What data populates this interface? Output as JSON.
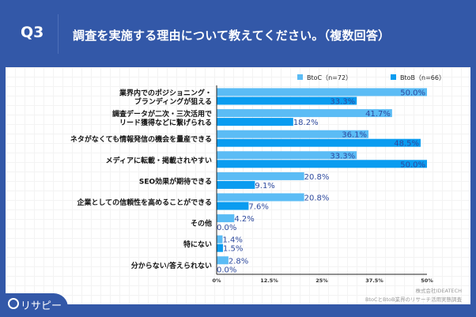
{
  "header": {
    "question": "Q3",
    "title": "調査を実施する理由について教えてください。（複数回答）"
  },
  "logo": "リサピー",
  "footer": {
    "company": "株式会社IDEATECH",
    "survey": "BtoCとBtoB業界のリサーチ活用実態調査"
  },
  "chart_data": {
    "type": "bar",
    "orientation": "horizontal",
    "categories": [
      [
        "業界内でのポジショニング・",
        "ブランディングが狙える"
      ],
      [
        "調査データが二次・三次活用で",
        "リード獲得などに繋げられる"
      ],
      [
        "ネタがなくても情報発信の機会を量産できる"
      ],
      [
        "メディアに転載・掲載されやすい"
      ],
      [
        "SEO効果が期待できる"
      ],
      [
        "企業としての信頼性を高めることができる"
      ],
      [
        "その他"
      ],
      [
        "特にない"
      ],
      [
        "分からない/答えられない"
      ]
    ],
    "series": [
      {
        "name": "BtoC（n=72）",
        "color": "#5bbcf5",
        "values": [
          50.0,
          41.7,
          36.1,
          33.3,
          20.8,
          20.8,
          4.2,
          1.4,
          2.8
        ]
      },
      {
        "name": "BtoB（n=66）",
        "color": "#0a9cf0",
        "values": [
          33.3,
          18.2,
          48.5,
          50.0,
          9.1,
          7.6,
          0.0,
          1.5,
          0.0
        ]
      }
    ],
    "xlim": [
      0,
      50
    ],
    "xticks": [
      "0%",
      "12.5%",
      "25%",
      "37.5%",
      "50%"
    ],
    "legend": "top-right",
    "label_color": "#2e4a9e"
  }
}
